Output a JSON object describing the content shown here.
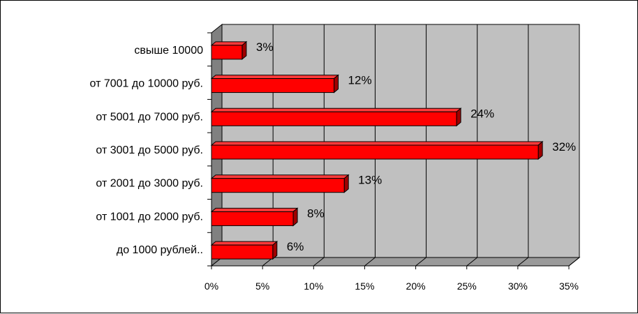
{
  "chart_data": {
    "type": "bar",
    "orientation": "horizontal",
    "style": "3d",
    "categories": [
      "свыше 10000",
      "от 7001 до 10000 руб.",
      "от 5001 до 7000 руб.",
      "от 3001 до 5000 руб.",
      "от 2001 до 3000 руб.",
      "от 1001 до 2000 руб.",
      "до 1000 рублей.."
    ],
    "values": [
      3,
      12,
      24,
      32,
      13,
      8,
      6
    ],
    "data_labels": [
      "3%",
      "12%",
      "24%",
      "32%",
      "13%",
      "8%",
      "6%"
    ],
    "xticks": [
      0,
      5,
      10,
      15,
      20,
      25,
      30,
      35
    ],
    "xtick_labels": [
      "0%",
      "5%",
      "10%",
      "15%",
      "20%",
      "25%",
      "30%",
      "35%"
    ],
    "xlim": [
      0,
      35
    ],
    "title": "",
    "xlabel": "",
    "ylabel": "",
    "grid": true,
    "legend": "none",
    "colors": {
      "bar_front": "#ff0000",
      "bar_top": "#ff3a3a",
      "bar_side": "#a00000",
      "plot_wall": "#c0c0c0",
      "side_wall": "#808080",
      "floor": "#9a9a9a",
      "grid": "#000000"
    }
  }
}
